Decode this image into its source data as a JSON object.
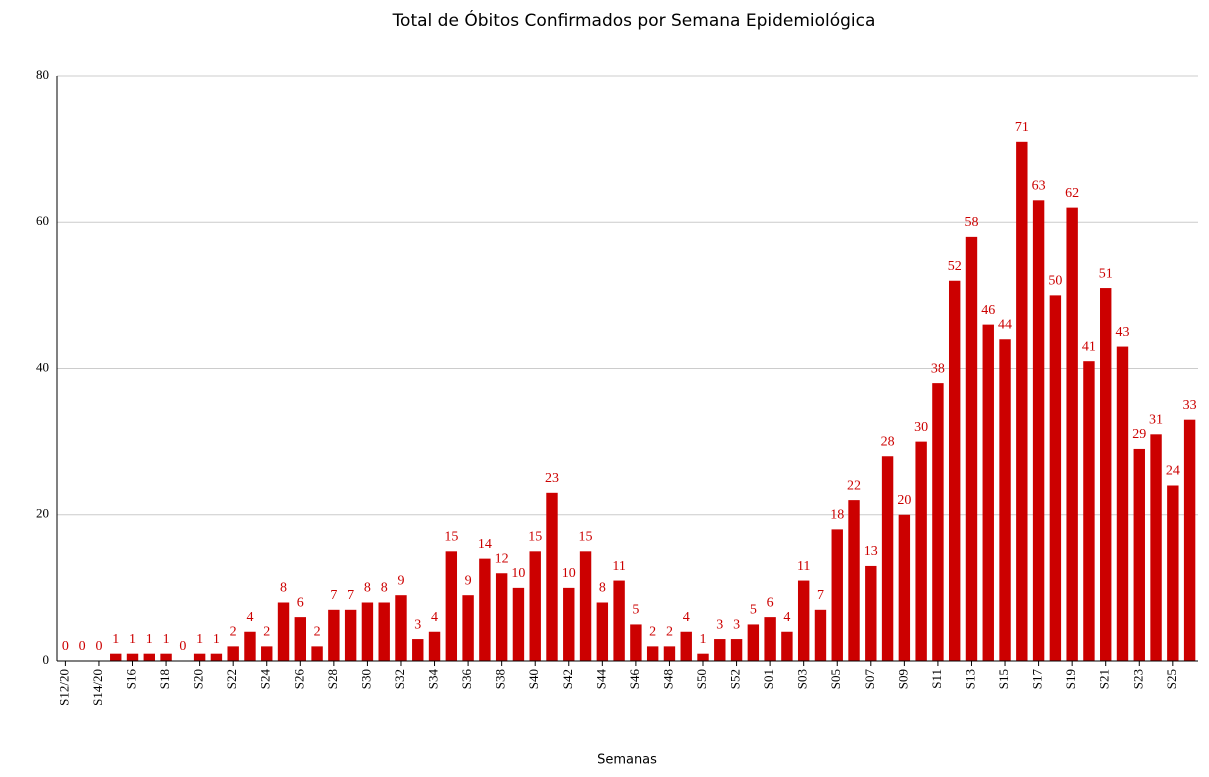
{
  "chart_data": {
    "type": "bar",
    "title": "Total de Óbitos Confirmados por Semana Epidemiológica",
    "x_label": "Semanas",
    "categories": [
      "S12/20",
      null,
      "S14/20",
      null,
      "S16",
      null,
      "S18",
      null,
      "S20",
      null,
      "S22",
      null,
      "S24",
      null,
      "S26",
      null,
      "S28",
      null,
      "S30",
      null,
      "S32",
      null,
      "S34",
      null,
      "S36",
      null,
      "S38",
      null,
      "S40",
      null,
      "S42",
      null,
      "S44",
      null,
      "S46",
      null,
      "S48",
      null,
      "S50",
      null,
      "S52",
      null,
      "S01",
      null,
      "S03",
      null,
      "S05",
      null,
      "S07",
      null,
      "S09",
      null,
      "S11",
      null,
      "S13",
      null,
      "S15",
      null,
      "S17",
      null,
      "S19",
      null,
      "S21",
      null,
      "S23",
      null,
      "S25",
      null
    ],
    "values": [
      0,
      0,
      0,
      1,
      1,
      1,
      1,
      0,
      1,
      1,
      2,
      4,
      2,
      8,
      6,
      2,
      7,
      7,
      8,
      8,
      9,
      3,
      4,
      15,
      9,
      14,
      12,
      10,
      15,
      23,
      10,
      15,
      8,
      11,
      5,
      2,
      2,
      4,
      1,
      3,
      3,
      5,
      6,
      4,
      11,
      7,
      18,
      22,
      13,
      28,
      20,
      30,
      38,
      52,
      58,
      46,
      44,
      71,
      63,
      50,
      62,
      41,
      51,
      43,
      29,
      31,
      24,
      33
    ],
    "color": "#cc0000",
    "ylim": [
      0,
      80
    ],
    "yticks": [
      0,
      20,
      40,
      60,
      80
    ],
    "grid": true
  }
}
